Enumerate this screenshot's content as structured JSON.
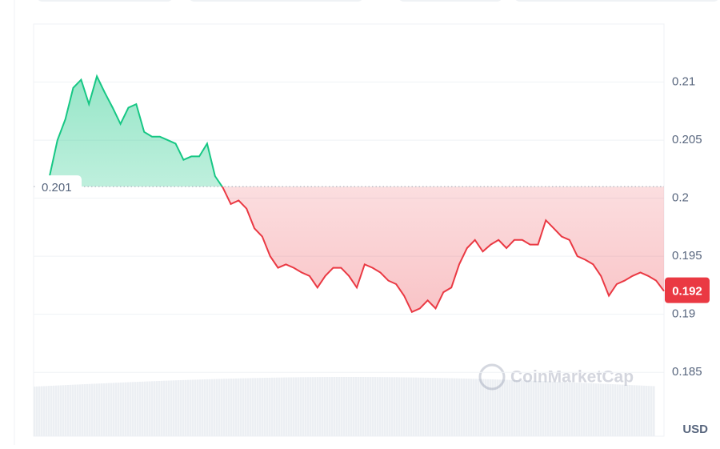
{
  "chart_data": {
    "type": "line",
    "currency": "USD",
    "watermark": "CoinMarketCap",
    "baseline": 0.201,
    "color_up": "#16c784",
    "color_down": "#ea3943",
    "values": [
      0.2019,
      0.205,
      0.2068,
      0.2095,
      0.2102,
      0.2081,
      0.2105,
      0.2091,
      0.2078,
      0.2064,
      0.2078,
      0.2081,
      0.2057,
      0.2053,
      0.2053,
      0.205,
      0.2047,
      0.2033,
      0.2036,
      0.2036,
      0.2047,
      0.2019,
      0.2009,
      0.1995,
      0.1998,
      0.1991,
      0.1974,
      0.1967,
      0.195,
      0.194,
      0.1943,
      0.194,
      0.1936,
      0.1933,
      0.1923,
      0.1933,
      0.194,
      0.194,
      0.1933,
      0.1923,
      0.1943,
      0.194,
      0.1936,
      0.1929,
      0.1926,
      0.1916,
      0.1902,
      0.1905,
      0.1912,
      0.1905,
      0.1919,
      0.1923,
      0.1943,
      0.1957,
      0.1964,
      0.1954,
      0.196,
      0.1964,
      0.1957,
      0.1964,
      0.1964,
      0.196,
      0.196,
      0.1981,
      0.1974,
      0.1967,
      0.1964,
      0.195,
      0.1947,
      0.1943,
      0.1933,
      0.1916,
      0.1926,
      0.1929,
      0.1933,
      0.1936,
      0.1933,
      0.1929,
      0.192
    ],
    "ylim": [
      0.1795,
      0.215
    ],
    "yticks": [
      0.185,
      0.19,
      0.195,
      0.2,
      0.205,
      0.21
    ],
    "grid": true
  }
}
